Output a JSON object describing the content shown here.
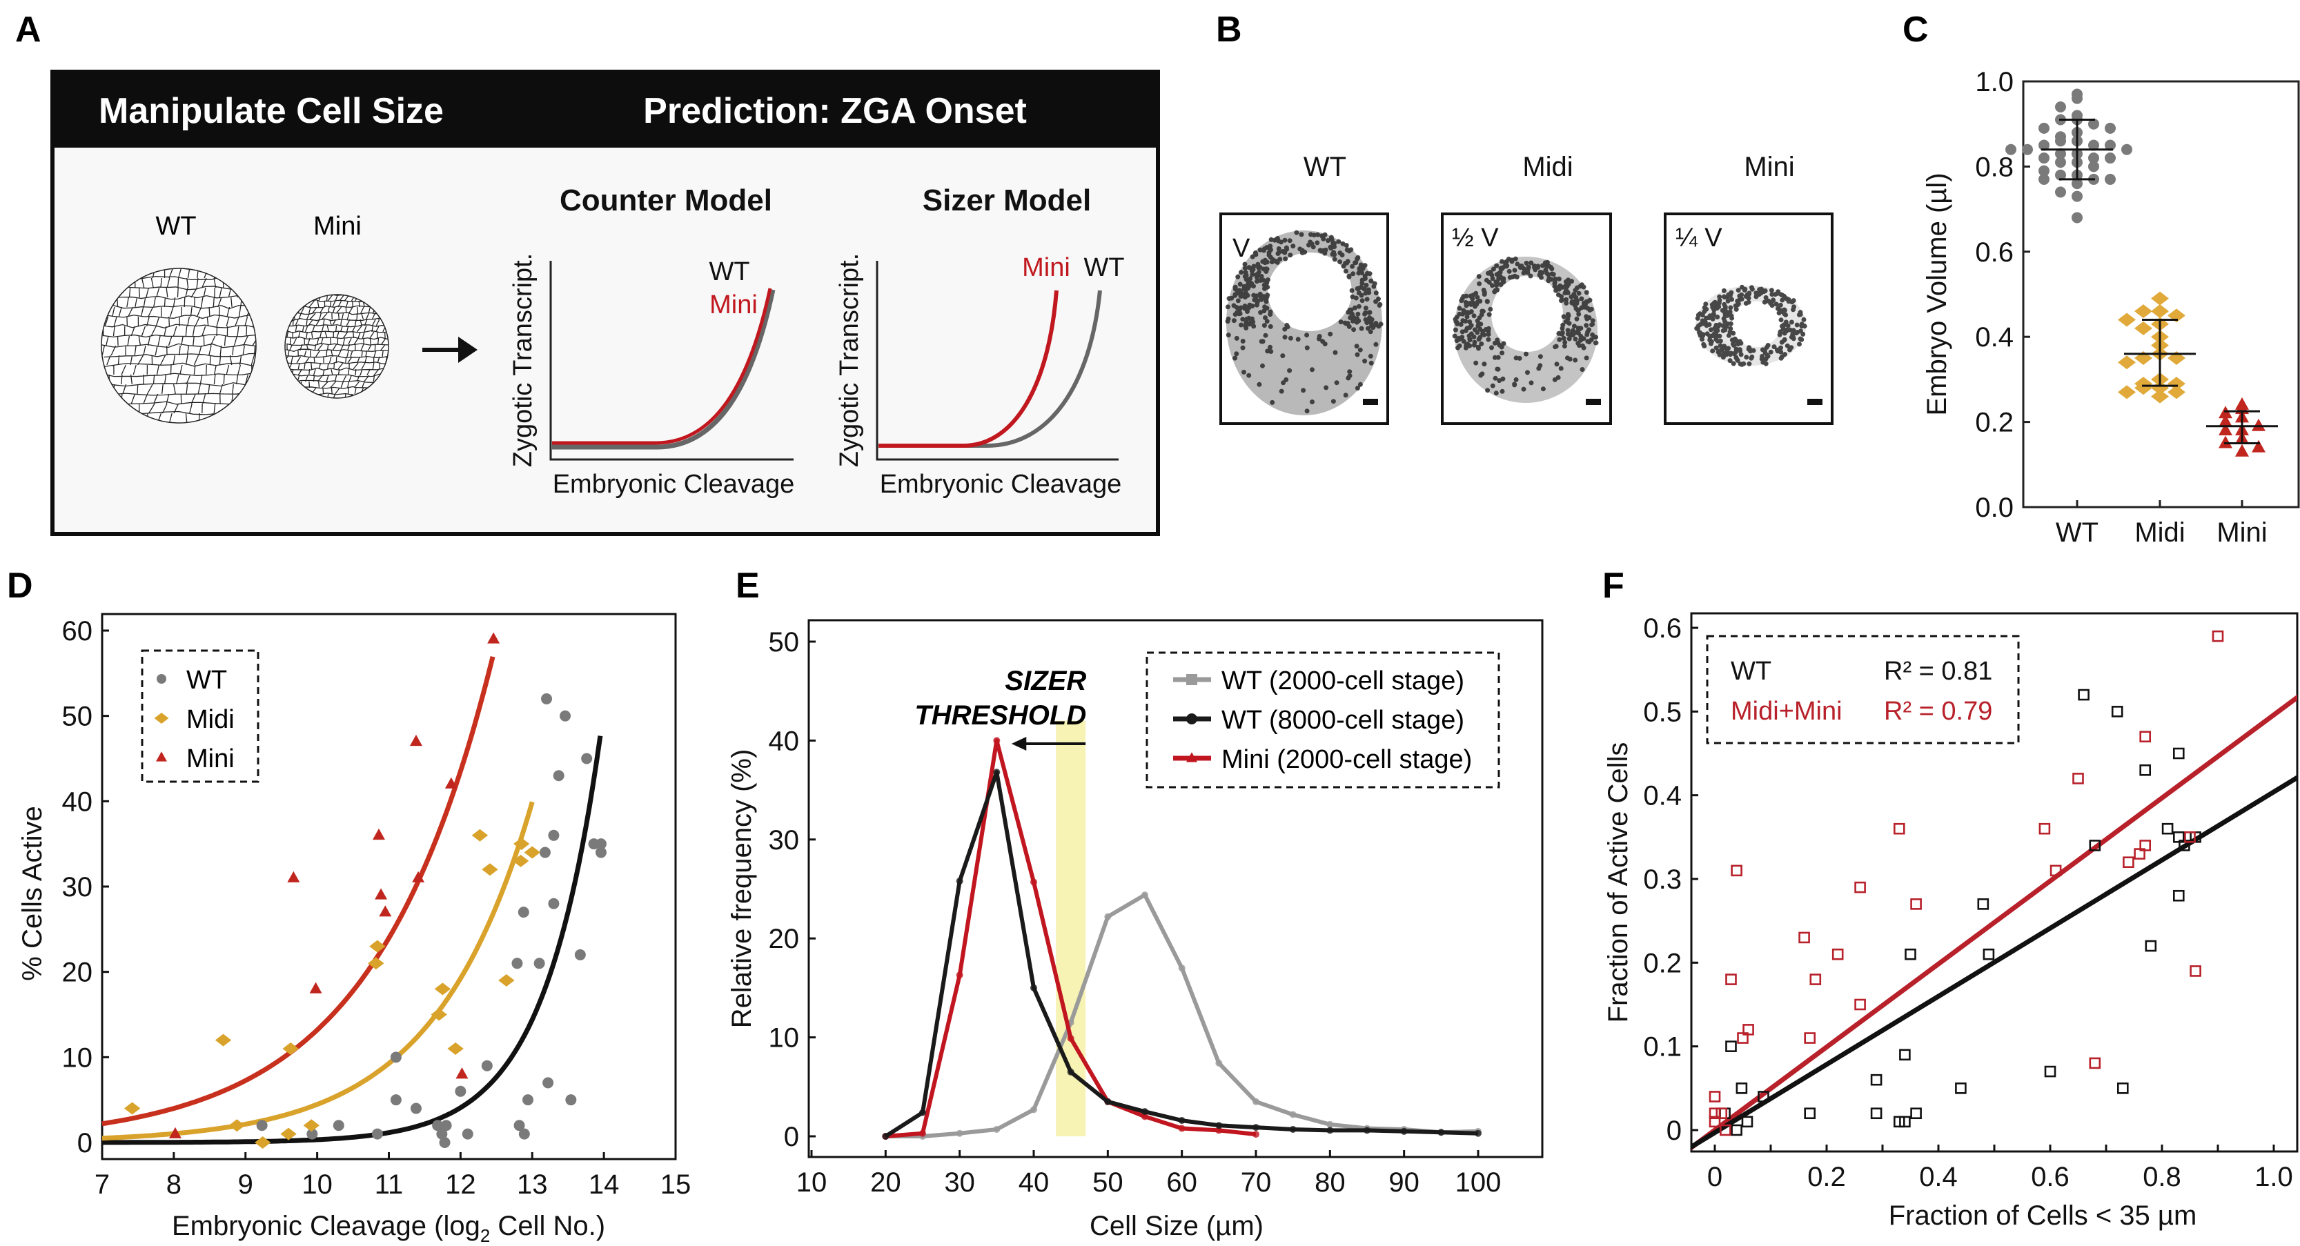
{
  "panel_labels": {
    "a": "A",
    "b": "B",
    "c": "C",
    "d": "D",
    "e": "E",
    "f": "F"
  },
  "colors": {
    "wt_grey": "#7a7a7a",
    "midi_gold": "#d9a22a",
    "mini_red": "#c0261e",
    "black": "#111111",
    "threshold_band": "#f7f3b4",
    "header_black": "#0d0d0d"
  },
  "panel_a": {
    "header_left": "Manipulate Cell Size",
    "header_right": "Prediction: ZGA Onset",
    "embryo_wt": "WT",
    "embryo_mini": "Mini",
    "counter_model": {
      "title": "Counter Model",
      "ylabel": "Zygotic Transcript.",
      "xlabel": "Embryonic Cleavage",
      "label_wt": "WT",
      "label_mini": "Mini"
    },
    "sizer_model": {
      "title": "Sizer Model",
      "ylabel": "Zygotic Transcript.",
      "xlabel": "Embryonic Cleavage",
      "label_wt": "WT",
      "label_mini": "Mini"
    }
  },
  "panel_b": {
    "images": [
      {
        "title": "WT",
        "volume_label": "V"
      },
      {
        "title": "Midi",
        "volume_label": "½ V"
      },
      {
        "title": "Mini",
        "volume_label": "¼ V"
      }
    ]
  },
  "chart_data": [
    {
      "panel": "C",
      "type": "scatter",
      "ylabel": "Embryo Volume (µl)",
      "categories": [
        "WT",
        "Midi",
        "Mini"
      ],
      "ylim": [
        0,
        1.0
      ],
      "yticks": [
        "0.0",
        "0.2",
        "0.4",
        "0.6",
        "0.8",
        "1.0"
      ],
      "series": [
        {
          "category": "WT",
          "marker": "circle",
          "color": "#7a7a7a",
          "mean": 0.84,
          "sd_range": [
            0.77,
            0.91
          ],
          "values": [
            0.97,
            0.96,
            0.94,
            0.92,
            0.91,
            0.91,
            0.9,
            0.89,
            0.89,
            0.88,
            0.87,
            0.86,
            0.86,
            0.85,
            0.85,
            0.85,
            0.84,
            0.84,
            0.84,
            0.83,
            0.83,
            0.82,
            0.82,
            0.82,
            0.81,
            0.81,
            0.8,
            0.79,
            0.78,
            0.78,
            0.77,
            0.77,
            0.77,
            0.76,
            0.74,
            0.73,
            0.68
          ]
        },
        {
          "category": "Midi",
          "marker": "diamond",
          "color": "#e0a93a",
          "mean": 0.36,
          "sd_range": [
            0.285,
            0.44
          ],
          "values": [
            0.49,
            0.46,
            0.46,
            0.45,
            0.44,
            0.43,
            0.42,
            0.4,
            0.38,
            0.36,
            0.35,
            0.35,
            0.34,
            0.3,
            0.29,
            0.29,
            0.28,
            0.28,
            0.27,
            0.27,
            0.26
          ]
        },
        {
          "category": "Mini",
          "marker": "triangle",
          "color": "#c0261e",
          "mean": 0.19,
          "sd_range": [
            0.15,
            0.225
          ],
          "values": [
            0.24,
            0.23,
            0.22,
            0.21,
            0.2,
            0.19,
            0.18,
            0.18,
            0.16,
            0.15,
            0.14,
            0.13
          ]
        }
      ]
    },
    {
      "panel": "D",
      "type": "scatter",
      "xlabel_main": "Embryonic Cleavage (log",
      "xlabel_sub": "2",
      "xlabel_end": " Cell No.)",
      "ylabel": "% Cells Active",
      "xlim": [
        7,
        15
      ],
      "ylim": [
        -2,
        61
      ],
      "xticks": [
        7,
        8,
        9,
        10,
        11,
        12,
        13,
        14,
        15
      ],
      "yticks": [
        0,
        10,
        20,
        30,
        40,
        50,
        60
      ],
      "legend": {
        "position": "top-left",
        "style": "dashed box"
      },
      "series": [
        {
          "name": "WT",
          "marker": "circle",
          "color": "#7a7a7a",
          "fit": {
            "type": "exponential",
            "a": 0.0075,
            "b": 1.26,
            "x_from": 7,
            "x_to": 13.95,
            "color": "#111111"
          },
          "points": [
            [
              9.23,
              2
            ],
            [
              9.93,
              1
            ],
            [
              10.3,
              2
            ],
            [
              10.84,
              1
            ],
            [
              11.1,
              10
            ],
            [
              11.1,
              5
            ],
            [
              11.38,
              4
            ],
            [
              11.68,
              2
            ],
            [
              11.8,
              2
            ],
            [
              11.74,
              1
            ],
            [
              11.78,
              0
            ],
            [
              12.0,
              6
            ],
            [
              12.1,
              1
            ],
            [
              12.37,
              9
            ],
            [
              12.79,
              21
            ],
            [
              12.82,
              2
            ],
            [
              12.89,
              1
            ],
            [
              12.88,
              27
            ],
            [
              12.94,
              5
            ],
            [
              13.1,
              21
            ],
            [
              13.18,
              34
            ],
            [
              13.2,
              52
            ],
            [
              13.22,
              7
            ],
            [
              13.3,
              36
            ],
            [
              13.3,
              28
            ],
            [
              13.37,
              43
            ],
            [
              13.46,
              50
            ],
            [
              13.54,
              5
            ],
            [
              13.67,
              22
            ],
            [
              13.76,
              45
            ],
            [
              13.86,
              35
            ],
            [
              13.96,
              35
            ],
            [
              13.96,
              34
            ]
          ]
        },
        {
          "name": "Midi",
          "marker": "diamond",
          "color": "#d9a22a",
          "fit": {
            "type": "exponential",
            "a": 0.5,
            "b": 0.73,
            "x_from": 7,
            "x_to": 13.0,
            "color": "#d9a22a"
          },
          "points": [
            [
              7.42,
              4
            ],
            [
              8.69,
              12
            ],
            [
              8.88,
              2
            ],
            [
              9.24,
              0
            ],
            [
              9.6,
              1
            ],
            [
              9.63,
              11
            ],
            [
              9.92,
              2
            ],
            [
              10.84,
              23
            ],
            [
              10.82,
              21
            ],
            [
              11.7,
              15
            ],
            [
              11.75,
              18
            ],
            [
              11.93,
              11
            ],
            [
              12.27,
              36
            ],
            [
              12.41,
              32
            ],
            [
              12.64,
              19
            ],
            [
              12.84,
              33
            ],
            [
              12.85,
              35
            ],
            [
              13.0,
              34
            ]
          ]
        },
        {
          "name": "Mini",
          "marker": "triangle",
          "color": "#c0261e",
          "fit": {
            "type": "exponential",
            "a": 2.2,
            "b": 0.597,
            "x_from": 7,
            "x_to": 12.45,
            "color": "#c8301e"
          },
          "points": [
            [
              8.02,
              1
            ],
            [
              9.67,
              31
            ],
            [
              9.98,
              18
            ],
            [
              10.86,
              36
            ],
            [
              10.89,
              29
            ],
            [
              10.95,
              27
            ],
            [
              11.38,
              47
            ],
            [
              11.41,
              31
            ],
            [
              11.87,
              42
            ],
            [
              12.02,
              8
            ],
            [
              12.46,
              59
            ]
          ]
        }
      ]
    },
    {
      "panel": "E",
      "type": "line",
      "xlabel": "Cell Size (µm)",
      "ylabel": "Relative frequency (%)",
      "xlim": [
        7,
        108
      ],
      "ylim": [
        -2,
        52
      ],
      "xticks": [
        10,
        20,
        30,
        40,
        50,
        60,
        70,
        80,
        90,
        100
      ],
      "yticks": [
        0,
        10,
        20,
        30,
        40,
        50
      ],
      "legend": {
        "position": "top-right",
        "style": "dashed box"
      },
      "annotation": {
        "text_line1": "SIZER",
        "text_line2": "THRESHOLD",
        "band_x": [
          43,
          47
        ],
        "band_top": 42,
        "arrow": "left"
      },
      "series": [
        {
          "name": "WT (2000-cell stage)",
          "color": "#9a9a9a",
          "marker": "square",
          "x": [
            20,
            25,
            30,
            35,
            40,
            45,
            50,
            55,
            60,
            65,
            70,
            75,
            80,
            85,
            90,
            95,
            100
          ],
          "y": [
            0,
            0,
            0.3,
            0.7,
            2.7,
            11.5,
            22.2,
            24.4,
            17,
            7.4,
            3.5,
            2.2,
            1.2,
            0.8,
            0.7,
            0.4,
            0.5
          ]
        },
        {
          "name": "WT (8000-cell stage)",
          "color": "#1a1a1a",
          "marker": "circle",
          "x": [
            20,
            25,
            30,
            35,
            40,
            45,
            50,
            55,
            60,
            65,
            70,
            75,
            80,
            85,
            90,
            95,
            100
          ],
          "y": [
            0,
            2.4,
            25.8,
            36.8,
            15,
            6.5,
            3.5,
            2.5,
            1.6,
            1.1,
            0.9,
            0.7,
            0.6,
            0.6,
            0.5,
            0.4,
            0.3
          ]
        },
        {
          "name": "Mini (2000-cell stage)",
          "color": "#c1161f",
          "marker": "triangle",
          "x": [
            20,
            25,
            30,
            35,
            40,
            45,
            50,
            55,
            60,
            65,
            70
          ],
          "y": [
            0,
            0.3,
            16.3,
            40,
            25.7,
            9.9,
            3.5,
            2,
            0.8,
            0.6,
            0.2
          ]
        }
      ]
    },
    {
      "panel": "F",
      "type": "scatter",
      "xlabel": "Fraction of Cells < 35 µm",
      "ylabel": "Fraction of Active Cells",
      "xlim": [
        -0.04,
        1.04
      ],
      "ylim": [
        -0.025,
        0.63
      ],
      "xticks": [
        "0",
        "0.2",
        "0.4",
        "0.6",
        "0.8",
        "1.0"
      ],
      "yticks": [
        "0",
        "0.1",
        "0.2",
        "0.3",
        "0.4",
        "0.5",
        "0.6"
      ],
      "legend": {
        "position": "top-left",
        "style": "dashed box"
      },
      "series": [
        {
          "name": "WT",
          "r2_label": "R² = 0.81",
          "color": "#111111",
          "marker": "open-square",
          "fit": {
            "type": "linear",
            "slope": 0.407,
            "intercept": -0.003
          },
          "points": [
            [
              0.018,
              0.02
            ],
            [
              0.029,
              0.1
            ],
            [
              0.039,
              0.0
            ],
            [
              0.048,
              0.05
            ],
            [
              0.058,
              0.01
            ],
            [
              0.087,
              0.04
            ],
            [
              0.17,
              0.02
            ],
            [
              0.289,
              0.06
            ],
            [
              0.289,
              0.02
            ],
            [
              0.33,
              0.01
            ],
            [
              0.34,
              0.01
            ],
            [
              0.34,
              0.09
            ],
            [
              0.35,
              0.21
            ],
            [
              0.36,
              0.02
            ],
            [
              0.44,
              0.05
            ],
            [
              0.48,
              0.27
            ],
            [
              0.49,
              0.21
            ],
            [
              0.6,
              0.07
            ],
            [
              0.66,
              0.52
            ],
            [
              0.68,
              0.34
            ],
            [
              0.72,
              0.5
            ],
            [
              0.73,
              0.05
            ],
            [
              0.77,
              0.43
            ],
            [
              0.78,
              0.22
            ],
            [
              0.81,
              0.36
            ],
            [
              0.83,
              0.45
            ],
            [
              0.83,
              0.35
            ],
            [
              0.83,
              0.28
            ],
            [
              0.84,
              0.34
            ],
            [
              0.86,
              0.35
            ]
          ]
        },
        {
          "name": "Midi+Mini",
          "r2_label": "R² = 0.79",
          "color": "#b8202a",
          "marker": "open-square",
          "fit": {
            "type": "linear",
            "slope": 0.496,
            "intercept": 0.0
          },
          "points": [
            [
              0,
              0.04
            ],
            [
              0,
              0.02
            ],
            [
              0,
              0.01
            ],
            [
              0.012,
              0.02
            ],
            [
              0.019,
              0
            ],
            [
              0.029,
              0.18
            ],
            [
              0.039,
              0.31
            ],
            [
              0.05,
              0.11
            ],
            [
              0.06,
              0.12
            ],
            [
              0.16,
              0.23
            ],
            [
              0.17,
              0.11
            ],
            [
              0.18,
              0.18
            ],
            [
              0.22,
              0.21
            ],
            [
              0.26,
              0.29
            ],
            [
              0.26,
              0.15
            ],
            [
              0.33,
              0.36
            ],
            [
              0.36,
              0.27
            ],
            [
              0.59,
              0.36
            ],
            [
              0.61,
              0.31
            ],
            [
              0.65,
              0.42
            ],
            [
              0.68,
              0.08
            ],
            [
              0.74,
              0.32
            ],
            [
              0.76,
              0.33
            ],
            [
              0.77,
              0.34
            ],
            [
              0.77,
              0.47
            ],
            [
              0.85,
              0.35
            ],
            [
              0.86,
              0.19
            ],
            [
              0.9,
              0.59
            ]
          ]
        }
      ]
    }
  ]
}
